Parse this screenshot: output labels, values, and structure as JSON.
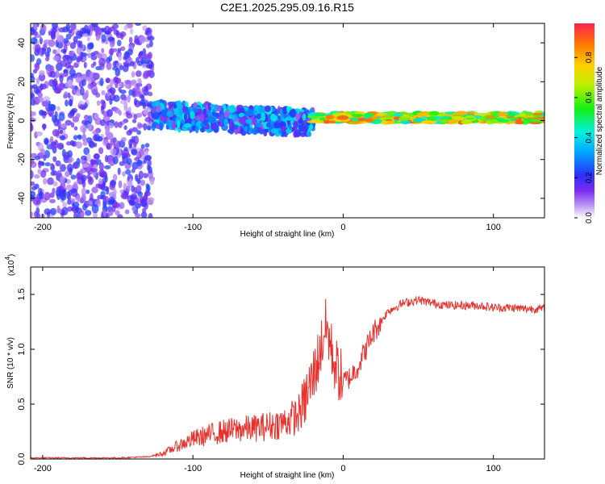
{
  "chart_data": [
    {
      "type": "heatmap",
      "title": "C2E1.2025.295.09.16.R15",
      "xlabel": "Height of straight line (km)",
      "ylabel": "Frequency (Hz)",
      "xlim": [
        -208,
        134
      ],
      "ylim": [
        -50,
        50
      ],
      "xticks": [
        "-200",
        "-100",
        "0",
        "100"
      ],
      "xtick_values": [
        -200,
        -100,
        0,
        100
      ],
      "yticks": [
        "40",
        "20",
        "0",
        "-20",
        "-40"
      ],
      "ytick_values": [
        40,
        20,
        0,
        -20,
        -40
      ],
      "colorbar": {
        "label": "Normalized spectral amplitude",
        "ticks": [
          "0.0",
          "0.2",
          "0.4",
          "0.6",
          "0.8"
        ],
        "tick_values": [
          0.0,
          0.2,
          0.4,
          0.6,
          0.8
        ],
        "range": [
          0,
          0.97
        ]
      },
      "regions": [
        {
          "x_range": [
            -208,
            -127
          ],
          "y_range": [
            -50,
            50
          ],
          "amplitude": [
            0.05,
            0.25
          ],
          "pattern": "scattered noise"
        },
        {
          "x_range": [
            -127,
            -20
          ],
          "y_range": [
            -6,
            10
          ],
          "amplitude": [
            0.1,
            0.45
          ],
          "pattern": "broad band"
        },
        {
          "x_range": [
            -20,
            134
          ],
          "y_range": [
            -1,
            4
          ],
          "amplitude": [
            0.4,
            0.95
          ],
          "pattern": "narrow band"
        }
      ]
    },
    {
      "type": "line",
      "ylabel": "SNR (10 * v/v)",
      "xlabel": "Height of straight line (km)",
      "y_multiplier": "(x10",
      "y_multiplier_exp": "4",
      "xlim": [
        -208,
        134
      ],
      "ylim": [
        0,
        1.75
      ],
      "xticks": [
        "-200",
        "-100",
        "0",
        "100"
      ],
      "xtick_values": [
        -200,
        -100,
        0,
        100
      ],
      "yticks": [
        "0.0",
        "0.5",
        "1.0",
        "1.5"
      ],
      "ytick_values": [
        0.0,
        0.5,
        1.0,
        1.5
      ],
      "color": "#e8302c",
      "series": [
        {
          "x": [
            -208,
            -180,
            -150,
            -130,
            -120,
            -110,
            -100,
            -90,
            -80,
            -70,
            -60,
            -50,
            -40,
            -30,
            -25,
            -20,
            -15,
            -12,
            -10,
            -8,
            -5,
            0,
            5,
            10,
            15,
            20,
            25,
            30,
            40,
            50,
            60,
            70,
            80,
            90,
            100,
            110,
            120,
            134
          ],
          "y": [
            0.01,
            0.01,
            0.01,
            0.02,
            0.05,
            0.12,
            0.18,
            0.22,
            0.25,
            0.27,
            0.28,
            0.3,
            0.33,
            0.4,
            0.55,
            0.75,
            1.0,
            1.2,
            1.15,
            1.0,
            0.85,
            0.7,
            0.75,
            0.85,
            1.0,
            1.15,
            1.25,
            1.35,
            1.42,
            1.45,
            1.42,
            1.4,
            1.4,
            1.4,
            1.38,
            1.38,
            1.37,
            1.37
          ]
        }
      ]
    }
  ]
}
